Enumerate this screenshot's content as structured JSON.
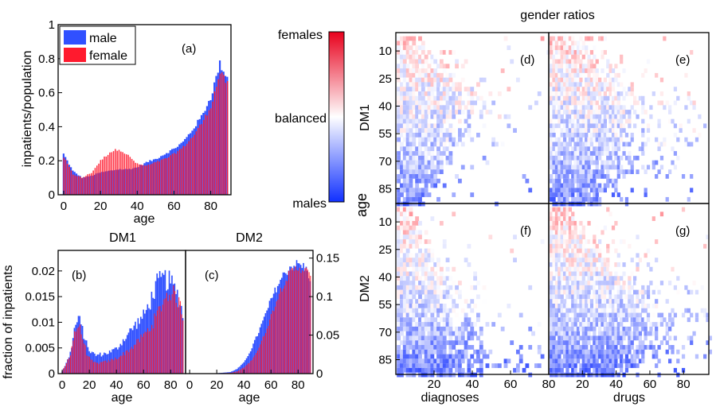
{
  "colors": {
    "male": "#3050ff",
    "female": "#ff1a2e",
    "neutral": "#ffffff"
  },
  "chart_data": [
    {
      "id": "a",
      "type": "bar",
      "panel_label": "(a)",
      "xlabel": "age",
      "ylabel": "inpatients/population",
      "xlim": [
        -3,
        91
      ],
      "ylim": [
        0,
        1
      ],
      "xticks": [
        0,
        20,
        40,
        60,
        80
      ],
      "yticks": [
        0,
        0.2,
        0.4,
        0.6,
        0.8,
        1
      ],
      "ytick_labels": [
        "0",
        "0.2",
        "0.4",
        "0.6",
        "0.8",
        "1"
      ],
      "legend": {
        "position": "top-left",
        "entries": [
          "male",
          "female"
        ]
      },
      "series": [
        {
          "name": "male",
          "x": [
            0,
            5,
            10,
            15,
            20,
            25,
            30,
            35,
            40,
            45,
            50,
            55,
            60,
            65,
            70,
            75,
            80,
            85,
            89
          ],
          "y": [
            0.24,
            0.14,
            0.1,
            0.11,
            0.13,
            0.14,
            0.15,
            0.15,
            0.16,
            0.19,
            0.21,
            0.24,
            0.27,
            0.31,
            0.38,
            0.46,
            0.57,
            0.77,
            0.69
          ]
        },
        {
          "name": "female",
          "x": [
            0,
            5,
            10,
            15,
            20,
            25,
            30,
            35,
            40,
            45,
            50,
            55,
            60,
            65,
            70,
            75,
            80,
            85,
            89
          ],
          "y": [
            0.22,
            0.12,
            0.1,
            0.13,
            0.2,
            0.25,
            0.27,
            0.23,
            0.18,
            0.17,
            0.19,
            0.21,
            0.24,
            0.28,
            0.34,
            0.42,
            0.52,
            0.72,
            0.65
          ]
        }
      ]
    },
    {
      "id": "b",
      "type": "bar",
      "title": "DM1",
      "panel_label": "(b)",
      "xlabel": "age",
      "ylabel": "fraction of inpatients",
      "xlim": [
        -3,
        91
      ],
      "ylim": [
        0,
        0.024
      ],
      "xticks": [
        0,
        20,
        40,
        60,
        80
      ],
      "yticks": [
        0,
        0.005,
        0.01,
        0.015,
        0.02
      ],
      "ytick_labels": [
        "0",
        "0.005",
        "0.01",
        "0.015",
        "0.02"
      ],
      "series": [
        {
          "name": "male",
          "x": [
            0,
            3,
            6,
            9,
            12,
            15,
            18,
            21,
            25,
            30,
            35,
            40,
            45,
            50,
            55,
            60,
            65,
            70,
            75,
            80,
            85,
            89
          ],
          "y": [
            0.0005,
            0.002,
            0.004,
            0.0085,
            0.011,
            0.0085,
            0.0058,
            0.0042,
            0.0036,
            0.0038,
            0.0042,
            0.0048,
            0.0065,
            0.0082,
            0.0098,
            0.0112,
            0.014,
            0.0175,
            0.0185,
            0.0178,
            0.0155,
            0.0118
          ]
        },
        {
          "name": "female",
          "x": [
            0,
            3,
            6,
            9,
            12,
            15,
            18,
            21,
            25,
            30,
            35,
            40,
            45,
            50,
            55,
            60,
            65,
            70,
            75,
            80,
            85,
            89
          ],
          "y": [
            0.0005,
            0.002,
            0.004,
            0.008,
            0.0095,
            0.007,
            0.004,
            0.0025,
            0.002,
            0.0022,
            0.0025,
            0.003,
            0.0038,
            0.0048,
            0.006,
            0.0075,
            0.009,
            0.0115,
            0.0145,
            0.016,
            0.0145,
            0.0115
          ]
        }
      ]
    },
    {
      "id": "c",
      "type": "bar",
      "title": "DM2",
      "panel_label": "(c)",
      "xlabel": "age",
      "ylabel": "",
      "y_axis_side": "right",
      "xlim": [
        -3,
        91
      ],
      "ylim": [
        0,
        0.16
      ],
      "xticks": [
        0,
        20,
        40,
        60,
        80
      ],
      "yticks": [
        0,
        0.05,
        0.1,
        0.15
      ],
      "ytick_labels": [
        "0",
        "0.05",
        "0.1",
        "0.15"
      ],
      "series": [
        {
          "name": "male",
          "x": [
            0,
            20,
            30,
            35,
            40,
            45,
            50,
            55,
            60,
            65,
            70,
            75,
            80,
            85,
            89
          ],
          "y": [
            0,
            0.0005,
            0.002,
            0.006,
            0.014,
            0.03,
            0.05,
            0.072,
            0.095,
            0.115,
            0.13,
            0.14,
            0.142,
            0.138,
            0.125
          ]
        },
        {
          "name": "female",
          "x": [
            0,
            20,
            30,
            35,
            40,
            45,
            50,
            55,
            60,
            65,
            70,
            75,
            80,
            85,
            89
          ],
          "y": [
            0,
            0.0003,
            0.001,
            0.003,
            0.008,
            0.016,
            0.03,
            0.05,
            0.075,
            0.1,
            0.12,
            0.132,
            0.138,
            0.136,
            0.125
          ]
        }
      ]
    },
    {
      "id": "colorbar",
      "type": "colorbar",
      "labels": [
        "females",
        "balanced",
        "males"
      ]
    },
    {
      "id": "d",
      "type": "heatmap",
      "panel_label": "(d)",
      "row_group": "DM1",
      "column_metric": "diagnoses",
      "ylim": [
        0,
        93
      ],
      "xlim": [
        0,
        80
      ],
      "yticks": [
        10,
        25,
        40,
        55,
        70,
        85
      ],
      "xticks": [],
      "extent_profile": [
        [
          4,
          15
        ],
        [
          20,
          30
        ],
        [
          35,
          50
        ],
        [
          50,
          40
        ],
        [
          65,
          35
        ],
        [
          80,
          25
        ],
        [
          90,
          18
        ]
      ],
      "grid_top_center": 13,
      "grid_bottom_center": 46
    },
    {
      "id": "e",
      "type": "heatmap",
      "panel_label": "(e)",
      "row_group": "DM1",
      "column_metric": "drugs",
      "ylim": [
        0,
        93
      ],
      "xlim": [
        0,
        95
      ],
      "yticks": [
        10,
        25,
        40,
        55,
        70,
        85
      ],
      "xticks": [],
      "extent_profile": [
        [
          4,
          22
        ],
        [
          20,
          40
        ],
        [
          35,
          60
        ],
        [
          50,
          62
        ],
        [
          65,
          55
        ],
        [
          80,
          45
        ],
        [
          90,
          35
        ]
      ],
      "grid_top_center": 13,
      "grid_bottom_center": 46
    },
    {
      "id": "f",
      "type": "heatmap",
      "panel_label": "(f)",
      "row_group": "DM2",
      "column_metric": "diagnoses",
      "xlabel": "diagnoses",
      "ylim": [
        0,
        93
      ],
      "xlim": [
        0,
        80
      ],
      "yticks": [
        10,
        25,
        40,
        55,
        70,
        85
      ],
      "xticks": [
        20,
        40,
        60,
        80
      ],
      "extent_profile": [
        [
          4,
          10
        ],
        [
          20,
          18
        ],
        [
          35,
          28
        ],
        [
          50,
          40
        ],
        [
          65,
          48
        ],
        [
          80,
          55
        ],
        [
          90,
          50
        ]
      ],
      "grid_top_center": 15,
      "grid_bottom_center": 50
    },
    {
      "id": "g",
      "type": "heatmap",
      "panel_label": "(g)",
      "row_group": "DM2",
      "column_metric": "drugs",
      "xlabel": "drugs",
      "ylim": [
        0,
        93
      ],
      "xlim": [
        0,
        95
      ],
      "yticks": [
        10,
        25,
        40,
        55,
        70,
        85
      ],
      "xticks": [
        20,
        40,
        60,
        80
      ],
      "extent_profile": [
        [
          4,
          15
        ],
        [
          20,
          30
        ],
        [
          35,
          50
        ],
        [
          50,
          70
        ],
        [
          65,
          80
        ],
        [
          80,
          70
        ],
        [
          90,
          60
        ]
      ],
      "grid_top_center": 15,
      "grid_bottom_center": 50
    }
  ],
  "labels": {
    "gender_ratios_title": "gender ratios",
    "dm1_row": "DM1",
    "dm2_row": "DM2",
    "age_axis": "age"
  }
}
